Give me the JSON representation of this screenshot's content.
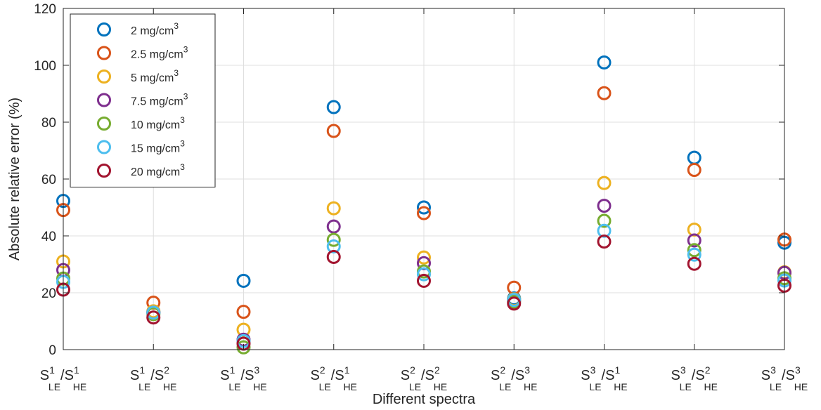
{
  "chart_data": {
    "type": "scatter",
    "xlabel": "Different spectra",
    "ylabel": "Absolute relative error (%)",
    "ylim": [
      0,
      120
    ],
    "yticks": [
      0,
      20,
      40,
      60,
      80,
      100,
      120
    ],
    "grid": true,
    "legend_position": "top-left",
    "categories": [
      {
        "sup1": "1",
        "sub1": "LE",
        "sup2": "1",
        "sub2": "HE"
      },
      {
        "sup1": "1",
        "sub1": "LE",
        "sup2": "2",
        "sub2": "HE"
      },
      {
        "sup1": "1",
        "sub1": "LE",
        "sup2": "3",
        "sub2": "HE"
      },
      {
        "sup1": "2",
        "sub1": "LE",
        "sup2": "1",
        "sub2": "HE"
      },
      {
        "sup1": "2",
        "sub1": "LE",
        "sup2": "2",
        "sub2": "HE"
      },
      {
        "sup1": "2",
        "sub1": "LE",
        "sup2": "3",
        "sub2": "HE"
      },
      {
        "sup1": "3",
        "sub1": "LE",
        "sup2": "1",
        "sub2": "HE"
      },
      {
        "sup1": "3",
        "sub1": "LE",
        "sup2": "2",
        "sub2": "HE"
      },
      {
        "sup1": "3",
        "sub1": "LE",
        "sup2": "3",
        "sub2": "HE"
      }
    ],
    "category_letter": "S",
    "series": [
      {
        "name": "2 mg/cm",
        "name_sup": "3",
        "color": "#0072BD",
        "values": [
          52.3,
          13.2,
          24.2,
          85.3,
          50.0,
          18.0,
          101.0,
          67.5,
          37.6
        ]
      },
      {
        "name": "2.5 mg/cm",
        "name_sup": "3",
        "color": "#D95319",
        "values": [
          49.1,
          16.5,
          13.3,
          76.9,
          48.0,
          21.8,
          90.2,
          63.2,
          38.7
        ]
      },
      {
        "name": "5 mg/cm",
        "name_sup": "3",
        "color": "#EDB120",
        "values": [
          31.0,
          13.5,
          7.0,
          49.7,
          32.4,
          17.7,
          58.6,
          42.2,
          27.2
        ]
      },
      {
        "name": "7.5 mg/cm",
        "name_sup": "3",
        "color": "#7E2F8E",
        "values": [
          28.0,
          13.0,
          3.5,
          43.3,
          30.4,
          17.1,
          50.6,
          38.4,
          27.0
        ]
      },
      {
        "name": "10 mg/cm",
        "name_sup": "3",
        "color": "#77AC30",
        "values": [
          25.0,
          12.5,
          0.8,
          38.6,
          27.5,
          16.8,
          45.3,
          35.0,
          25.1
        ]
      },
      {
        "name": "15 mg/cm",
        "name_sup": "3",
        "color": "#4DBEEE",
        "values": [
          23.8,
          13.0,
          3.0,
          36.3,
          26.5,
          17.5,
          41.8,
          33.4,
          24.3
        ]
      },
      {
        "name": "20 mg/cm",
        "name_sup": "3",
        "color": "#A2142F",
        "values": [
          21.1,
          11.3,
          2.1,
          32.6,
          24.2,
          16.2,
          38.0,
          30.2,
          22.5
        ]
      }
    ]
  }
}
